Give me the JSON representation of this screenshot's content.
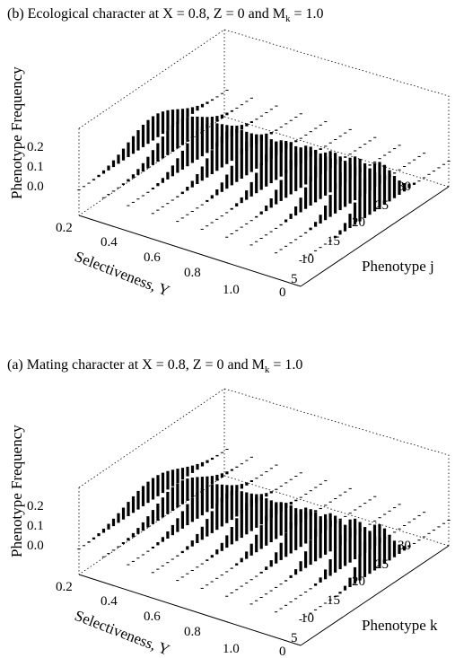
{
  "chart_data": [
    {
      "id": "b",
      "type": "3d-bar",
      "title": "(b) Ecological character at X = 0.8, Z = 0 and M",
      "title_sub": "k",
      "title_end": " = 1.0",
      "zlabel": "Phenotype Frequency",
      "xlabel": "Selectiveness, Y",
      "ylabel": "Phenotype j",
      "x_ticks": [
        "0.2",
        "0.4",
        "0.6",
        "0.8",
        "1.0"
      ],
      "y_ticks": [
        "0",
        "5",
        "10",
        "15",
        "20",
        "25",
        "30"
      ],
      "z_ticks": [
        "0.2",
        "0.1",
        "0.0"
      ],
      "xlim": [
        0.1,
        1.0
      ],
      "ylim": [
        0,
        30
      ],
      "zlim": [
        0,
        0.3
      ],
      "series": [
        {
          "Y": 0.1,
          "center": 15,
          "sigma": 5.0,
          "peak": 0.09
        },
        {
          "Y": 0.2,
          "center": 15,
          "sigma": 4.6,
          "peak": 0.1
        },
        {
          "Y": 0.3,
          "center": 15,
          "sigma": 4.2,
          "peak": 0.11
        },
        {
          "Y": 0.4,
          "center": 15,
          "sigma": 3.9,
          "peak": 0.12
        },
        {
          "Y": 0.5,
          "center": 15,
          "sigma": 3.7,
          "peak": 0.13
        },
        {
          "Y": 0.6,
          "center": 15,
          "sigma": 3.6,
          "peak": 0.14
        },
        {
          "Y": 0.7,
          "center": 15,
          "sigma": 3.5,
          "peak": 0.15
        },
        {
          "Y": 0.8,
          "center": 15,
          "sigma": 3.4,
          "peak": 0.16
        },
        {
          "Y": 0.9,
          "center": 15,
          "sigma": 3.3,
          "peak": 0.17
        },
        {
          "Y": 1.0,
          "center": 15,
          "sigma": 3.2,
          "peak": 0.18
        }
      ]
    },
    {
      "id": "a",
      "type": "3d-bar",
      "title": "(a) Mating character at X = 0.8, Z = 0 and M",
      "title_sub": "k",
      "title_end": " = 1.0",
      "zlabel": "Phenotype Frequency",
      "xlabel": "Selectiveness, Y",
      "ylabel": "Phenotype k",
      "x_ticks": [
        "0.2",
        "0.4",
        "0.6",
        "0.8",
        "1.0"
      ],
      "y_ticks": [
        "0",
        "5",
        "10",
        "15",
        "20",
        "25",
        "30"
      ],
      "z_ticks": [
        "0.2",
        "0.1",
        "0.0"
      ],
      "xlim": [
        0.1,
        1.0
      ],
      "ylim": [
        0,
        30
      ],
      "zlim": [
        0,
        0.3
      ],
      "series": [
        {
          "Y": 0.1,
          "center": 15,
          "sigma": 5.5,
          "peak": 0.08
        },
        {
          "Y": 0.2,
          "center": 15,
          "sigma": 4.8,
          "peak": 0.09
        },
        {
          "Y": 0.3,
          "center": 15,
          "sigma": 4.3,
          "peak": 0.1
        },
        {
          "Y": 0.4,
          "center": 15,
          "sigma": 3.9,
          "peak": 0.11
        },
        {
          "Y": 0.5,
          "center": 15,
          "sigma": 3.6,
          "peak": 0.12
        },
        {
          "Y": 0.6,
          "center": 15,
          "sigma": 3.4,
          "peak": 0.13
        },
        {
          "Y": 0.7,
          "center": 15,
          "sigma": 3.2,
          "peak": 0.14
        },
        {
          "Y": 0.8,
          "center": 15,
          "sigma": 3.0,
          "peak": 0.15
        },
        {
          "Y": 0.9,
          "center": 15,
          "sigma": 2.9,
          "peak": 0.16
        },
        {
          "Y": 1.0,
          "center": 15,
          "sigma": 2.8,
          "peak": 0.17
        }
      ]
    }
  ]
}
